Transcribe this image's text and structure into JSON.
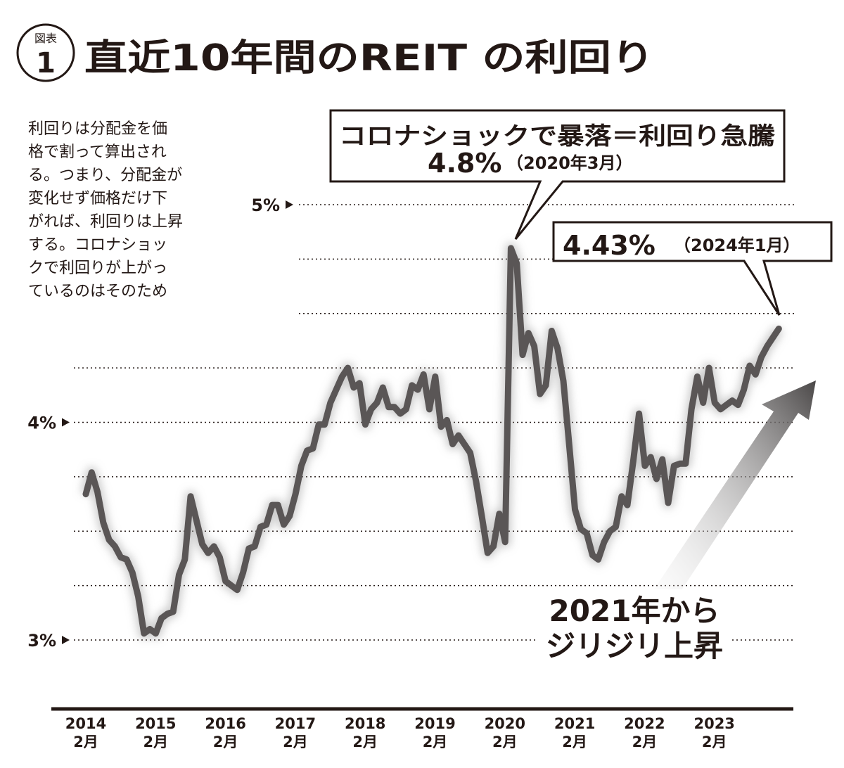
{
  "badge": {
    "label": "図表",
    "number": "1"
  },
  "title": "直近10年間のREIT の利回り",
  "note_lines": [
    "利回りは分配金を価",
    "格で割って算出され",
    "る。つまり、分配金が",
    "変化せず価格だけ下",
    "がれば、利回りは上昇",
    "する。コロナショッ",
    "クで利回りが上がっ",
    "ているのはそのため"
  ],
  "callouts": {
    "covid": {
      "line1": "コロナショックで暴落＝利回り急騰",
      "value": "4.8%",
      "date": "（2020年3月）"
    },
    "latest": {
      "value": "4.43%",
      "date": "（2024年1月）"
    },
    "trend": {
      "line1": "2021年から",
      "line2": "ジリジリ上昇"
    }
  },
  "colors": {
    "line": "#5a5656",
    "text": "#231815",
    "arrow_dark": "#4a4747",
    "arrow_light": "#f2f2f2"
  },
  "chart_data": {
    "type": "line",
    "title": "直近10年間のREIT の利回り",
    "xlabel": "",
    "ylabel": "",
    "ylim": [
      3,
      5
    ],
    "y_ticks": [
      {
        "value": 5,
        "label": "5%"
      },
      {
        "value": 4,
        "label": "4%"
      },
      {
        "value": 3,
        "label": "3%"
      }
    ],
    "y_grid": [
      3,
      3.25,
      3.5,
      3.75,
      4,
      4.25,
      4.5,
      4.75,
      5
    ],
    "grid": true,
    "x_ticks": [
      {
        "year": "2014",
        "month": "2月"
      },
      {
        "year": "2015",
        "month": "2月"
      },
      {
        "year": "2016",
        "month": "2月"
      },
      {
        "year": "2017",
        "month": "2月"
      },
      {
        "year": "2018",
        "month": "2月"
      },
      {
        "year": "2019",
        "month": "2月"
      },
      {
        "year": "2020",
        "month": "2月"
      },
      {
        "year": "2021",
        "month": "2月"
      },
      {
        "year": "2022",
        "month": "2月"
      },
      {
        "year": "2023",
        "month": "2月"
      }
    ],
    "x_start": "2014-02",
    "values": [
      3.67,
      3.77,
      3.68,
      3.54,
      3.46,
      3.43,
      3.38,
      3.37,
      3.31,
      3.2,
      3.03,
      3.05,
      3.03,
      3.1,
      3.12,
      3.13,
      3.3,
      3.37,
      3.66,
      3.55,
      3.44,
      3.4,
      3.43,
      3.38,
      3.27,
      3.25,
      3.23,
      3.31,
      3.42,
      3.43,
      3.52,
      3.53,
      3.62,
      3.62,
      3.53,
      3.57,
      3.67,
      3.8,
      3.87,
      3.88,
      3.99,
      3.99,
      4.09,
      4.15,
      4.21,
      4.25,
      4.16,
      4.18,
      3.99,
      4.06,
      4.09,
      4.16,
      4.07,
      4.07,
      4.04,
      4.06,
      4.17,
      4.15,
      4.22,
      4.06,
      4.21,
      3.98,
      4.01,
      3.9,
      3.94,
      3.9,
      3.86,
      3.73,
      3.57,
      3.4,
      3.43,
      3.58,
      3.45,
      4.8,
      4.73,
      4.31,
      4.41,
      4.35,
      4.13,
      4.17,
      4.42,
      4.34,
      4.19,
      3.9,
      3.6,
      3.51,
      3.49,
      3.39,
      3.37,
      3.45,
      3.5,
      3.52,
      3.66,
      3.62,
      3.82,
      4.04,
      3.8,
      3.84,
      3.74,
      3.83,
      3.63,
      3.8,
      3.81,
      3.81,
      4.06,
      4.21,
      4.09,
      4.25,
      4.09,
      4.06,
      4.08,
      4.1,
      4.08,
      4.15,
      4.26,
      4.22,
      4.3,
      4.35,
      4.39,
      4.43
    ]
  }
}
